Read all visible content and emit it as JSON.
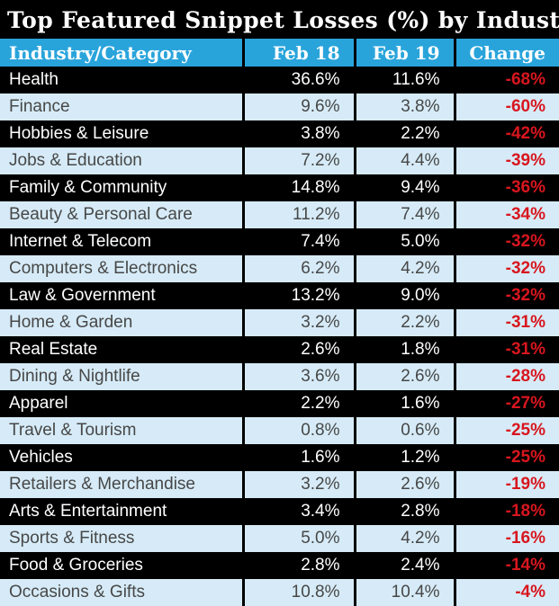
{
  "colors": {
    "header_bg": "#29a4db",
    "header_text": "#ffffff",
    "title_text": "#ffffff",
    "row_dark_bg": "#000000",
    "row_dark_text": "#ffffff",
    "row_light_bg": "#d6ebf7",
    "row_light_text": "#474747",
    "change_red": "#d8161f"
  },
  "chart_data": {
    "type": "table",
    "title": "Top Featured Snippet Losses (%) by Industry",
    "columns": [
      "Industry/Category",
      "Feb 18",
      "Feb 19",
      "Change"
    ],
    "rows": [
      {
        "industry": "Health",
        "feb18": "36.6%",
        "feb19": "11.6%",
        "change": "-68%"
      },
      {
        "industry": "Finance",
        "feb18": "9.6%",
        "feb19": "3.8%",
        "change": "-60%"
      },
      {
        "industry": "Hobbies & Leisure",
        "feb18": "3.8%",
        "feb19": "2.2%",
        "change": "-42%"
      },
      {
        "industry": "Jobs & Education",
        "feb18": "7.2%",
        "feb19": "4.4%",
        "change": "-39%"
      },
      {
        "industry": "Family & Community",
        "feb18": "14.8%",
        "feb19": "9.4%",
        "change": "-36%"
      },
      {
        "industry": "Beauty & Personal Care",
        "feb18": "11.2%",
        "feb19": "7.4%",
        "change": "-34%"
      },
      {
        "industry": "Internet & Telecom",
        "feb18": "7.4%",
        "feb19": "5.0%",
        "change": "-32%"
      },
      {
        "industry": "Computers & Electronics",
        "feb18": "6.2%",
        "feb19": "4.2%",
        "change": "-32%"
      },
      {
        "industry": "Law & Government",
        "feb18": "13.2%",
        "feb19": "9.0%",
        "change": "-32%"
      },
      {
        "industry": "Home & Garden",
        "feb18": "3.2%",
        "feb19": "2.2%",
        "change": "-31%"
      },
      {
        "industry": "Real Estate",
        "feb18": "2.6%",
        "feb19": "1.8%",
        "change": "-31%"
      },
      {
        "industry": "Dining & Nightlife",
        "feb18": "3.6%",
        "feb19": "2.6%",
        "change": "-28%"
      },
      {
        "industry": "Apparel",
        "feb18": "2.2%",
        "feb19": "1.6%",
        "change": "-27%"
      },
      {
        "industry": "Travel & Tourism",
        "feb18": "0.8%",
        "feb19": "0.6%",
        "change": "-25%"
      },
      {
        "industry": "Vehicles",
        "feb18": "1.6%",
        "feb19": "1.2%",
        "change": "-25%"
      },
      {
        "industry": "Retailers & Merchandise",
        "feb18": "3.2%",
        "feb19": "2.6%",
        "change": "-19%"
      },
      {
        "industry": "Arts & Entertainment",
        "feb18": "3.4%",
        "feb19": "2.8%",
        "change": "-18%"
      },
      {
        "industry": "Sports & Fitness",
        "feb18": "5.0%",
        "feb19": "4.2%",
        "change": "-16%"
      },
      {
        "industry": "Food & Groceries",
        "feb18": "2.8%",
        "feb19": "2.4%",
        "change": "-14%"
      },
      {
        "industry": "Occasions & Gifts",
        "feb18": "10.8%",
        "feb19": "10.4%",
        "change": "-4%"
      }
    ]
  }
}
